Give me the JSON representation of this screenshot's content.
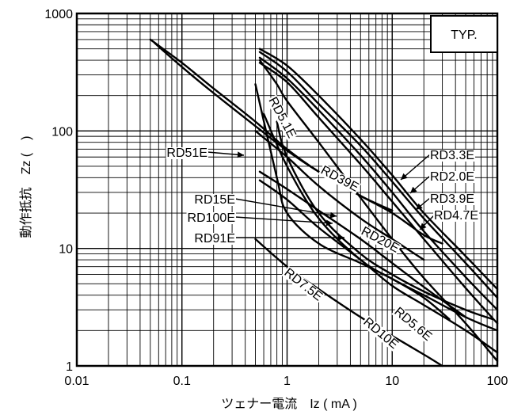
{
  "chart_data": {
    "type": "line",
    "x_scale": "log",
    "y_scale": "log",
    "xlim": [
      0.01,
      100
    ],
    "ylim": [
      1,
      1000
    ],
    "grid": true,
    "xlabel": "ツェナー電流　Iz ( mA )",
    "ylabel": "動作抵抗　Zz (　)",
    "x_ticks": [
      "0.01",
      "0.1",
      "1",
      "10",
      "100"
    ],
    "y_ticks": [
      "1",
      "10",
      "100",
      "1000"
    ],
    "annotation": "TYP.",
    "series": [
      {
        "name": "RD2.0E",
        "x": [
          0.55,
          1,
          2,
          5,
          10,
          20,
          50,
          100
        ],
        "y": [
          500,
          360,
          200,
          85,
          42,
          20,
          8.6,
          4.5
        ]
      },
      {
        "name": "RD3.3E",
        "x": [
          0.55,
          1,
          2,
          5,
          10,
          20,
          50,
          100
        ],
        "y": [
          470,
          320,
          170,
          75,
          37,
          18,
          7.5,
          3.8
        ]
      },
      {
        "name": "RD3.9E",
        "x": [
          0.55,
          1,
          2,
          5,
          10,
          20,
          50,
          100
        ],
        "y": [
          420,
          280,
          150,
          62,
          30,
          14,
          5.7,
          3.0
        ]
      },
      {
        "name": "RD4.7E",
        "x": [
          0.55,
          1,
          2,
          5,
          10,
          20,
          50,
          100
        ],
        "y": [
          380,
          260,
          130,
          52,
          25,
          12,
          4.6,
          2.3
        ]
      },
      {
        "name": "RD5.1E",
        "x": [
          0.55,
          0.8,
          1,
          2,
          5,
          10,
          20,
          50,
          100
        ],
        "y": [
          400,
          250,
          180,
          80,
          27,
          12,
          5.6,
          2.3,
          1.1
        ]
      },
      {
        "name": "RD39E",
        "x": [
          0.05,
          0.1,
          0.2,
          0.5,
          1,
          2,
          5,
          10
        ],
        "y": [
          600,
          380,
          230,
          120,
          70,
          45,
          28,
          21
        ]
      },
      {
        "name": "RD51E",
        "x": [
          0.055,
          0.1,
          0.2,
          0.5,
          1,
          2,
          5,
          10,
          20,
          30
        ],
        "y": [
          560,
          350,
          210,
          110,
          68,
          45,
          28,
          20,
          13,
          11
        ]
      },
      {
        "name": "RD20E",
        "x": [
          0.5,
          1,
          2,
          5,
          10,
          20
        ],
        "y": [
          100,
          60,
          34,
          18,
          12,
          8
        ]
      },
      {
        "name": "RD15E",
        "x": [
          0.55,
          1,
          2,
          5,
          10,
          20,
          50
        ],
        "y": [
          45,
          32,
          21,
          12,
          7.5,
          4.7,
          2.6
        ]
      },
      {
        "name": "RD91E",
        "x": [
          0.55,
          1,
          2,
          5,
          10,
          20,
          50,
          100
        ],
        "y": [
          38,
          26,
          15,
          8,
          4.8,
          3.3,
          2.0,
          1.3
        ]
      },
      {
        "name": "RD100E",
        "x": [
          0.5,
          0.8,
          1,
          2,
          5,
          10,
          20,
          35
        ],
        "y": [
          250,
          40,
          20,
          11,
          7.5,
          5.5,
          3.8,
          2.5
        ]
      },
      {
        "name": "RD5.6E",
        "x": [
          0.6,
          1,
          2,
          5,
          10,
          20,
          50,
          100
        ],
        "y": [
          140,
          50,
          18,
          8,
          5.5,
          4,
          2.6,
          2.0
        ]
      },
      {
        "name": "RD7.5E",
        "x": [
          0.5,
          1,
          2,
          5,
          10,
          20,
          30
        ],
        "y": [
          12,
          7,
          4.5,
          2.6,
          1.8,
          1.25,
          1.0
        ]
      },
      {
        "name": "RD10E",
        "x": [
          0.8,
          1,
          2,
          5,
          10,
          20,
          50,
          90
        ],
        "y": [
          120,
          60,
          20,
          9,
          6,
          4.3,
          3.0,
          2.5
        ]
      }
    ]
  }
}
